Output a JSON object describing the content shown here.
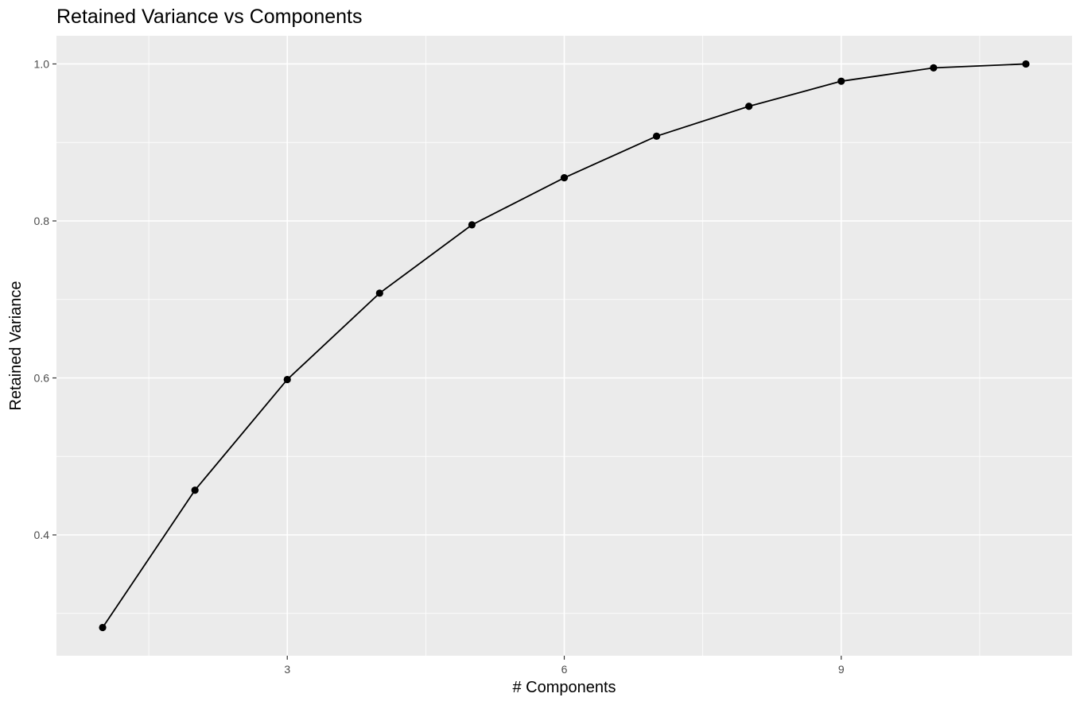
{
  "chart_data": {
    "type": "line",
    "title": "Retained Variance vs Components",
    "xlabel": "# Components",
    "ylabel": "Retained Variance",
    "x": [
      1,
      2,
      3,
      4,
      5,
      6,
      7,
      8,
      9,
      10,
      11
    ],
    "series": [
      {
        "values": [
          0.282,
          0.457,
          0.598,
          0.708,
          0.795,
          0.855,
          0.908,
          0.946,
          0.978,
          0.995,
          1.0
        ]
      }
    ],
    "xlim": [
      0.5,
      11.5
    ],
    "ylim": [
      0.2461,
      1.0359
    ],
    "x_ticks": [
      3,
      6,
      9
    ],
    "x_tick_labels": [
      "3",
      "6",
      "9"
    ],
    "y_ticks": [
      0.4,
      0.6,
      0.8,
      1.0
    ],
    "y_tick_labels": [
      "0.4",
      "0.6",
      "0.8",
      "1.0"
    ],
    "grid": true,
    "panel_color": "#ebebeb",
    "grid_color": "#ffffff",
    "line_color": "#000000",
    "point_color": "#000000"
  }
}
